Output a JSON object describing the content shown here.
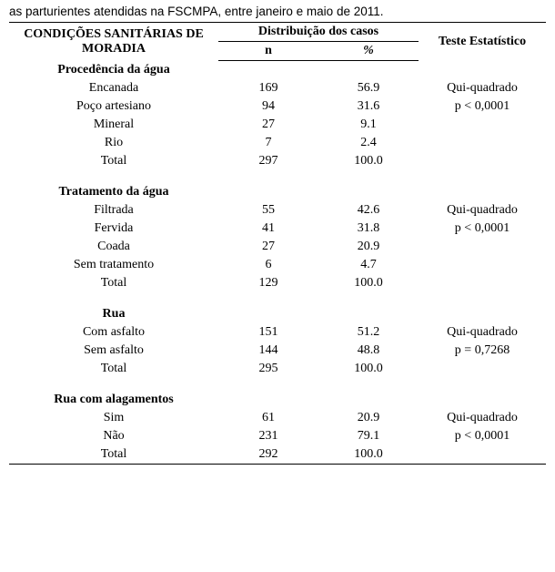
{
  "caption": "as parturientes atendidas na FSCMPA, entre janeiro e maio de 2011.",
  "headers": {
    "main": "CONDIÇÕES SANITÁRIAS DE MORADIA",
    "dist": "Distribuição dos casos",
    "n": "n",
    "pct": "%",
    "test": "Teste Estatístico"
  },
  "sections": [
    {
      "title": "Procedência da água",
      "test1": "Qui-quadrado",
      "test2": "p < 0,0001",
      "rows": [
        {
          "label": "Encanada",
          "n": "169",
          "pct": "56.9"
        },
        {
          "label": "Poço artesiano",
          "n": "94",
          "pct": "31.6"
        },
        {
          "label": "Mineral",
          "n": "27",
          "pct": "9.1"
        },
        {
          "label": "Rio",
          "n": "7",
          "pct": "2.4"
        },
        {
          "label": "Total",
          "n": "297",
          "pct": "100.0"
        }
      ]
    },
    {
      "title": "Tratamento da água",
      "test1": "Qui-quadrado",
      "test2": "p < 0,0001",
      "rows": [
        {
          "label": "Filtrada",
          "n": "55",
          "pct": "42.6"
        },
        {
          "label": "Fervida",
          "n": "41",
          "pct": "31.8"
        },
        {
          "label": "Coada",
          "n": "27",
          "pct": "20.9"
        },
        {
          "label": "Sem tratamento",
          "n": "6",
          "pct": "4.7"
        },
        {
          "label": "Total",
          "n": "129",
          "pct": "100.0"
        }
      ]
    },
    {
      "title": "Rua",
      "test1": "Qui-quadrado",
      "test2": "p = 0,7268",
      "rows": [
        {
          "label": "Com asfalto",
          "n": "151",
          "pct": "51.2"
        },
        {
          "label": "Sem asfalto",
          "n": "144",
          "pct": "48.8"
        },
        {
          "label": "Total",
          "n": "295",
          "pct": "100.0"
        }
      ]
    },
    {
      "title": "Rua com alagamentos",
      "test1": "Qui-quadrado",
      "test2": "p < 0,0001",
      "rows": [
        {
          "label": "Sim",
          "n": "61",
          "pct": "20.9"
        },
        {
          "label": "Não",
          "n": "231",
          "pct": "79.1"
        },
        {
          "label": "Total",
          "n": "292",
          "pct": "100.0"
        }
      ]
    }
  ]
}
